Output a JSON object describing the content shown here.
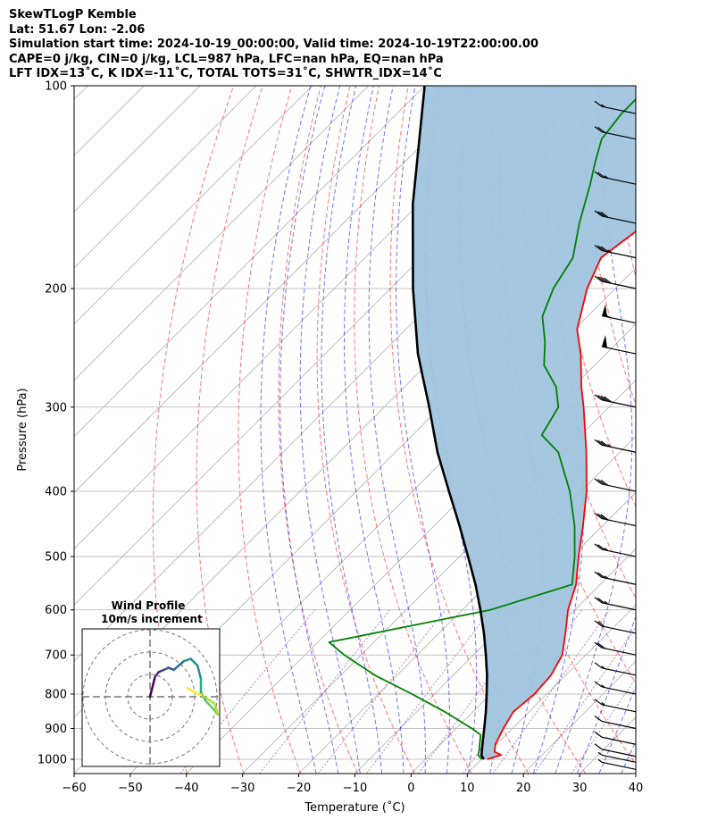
{
  "header": {
    "line1": "SkewTLogP Kemble",
    "line2": "Lat: 51.67   Lon: -2.06",
    "line3": "Simulation start time: 2024-10-19_00:00:00, Valid time: 2024-10-19T22:00:00.00",
    "line4": "CAPE=0 j/kg, CIN=0 j/kg, LCL=987 hPa, LFC=nan hPa, EQ=nan hPa",
    "line5": "LFT IDX=13˚C, K IDX=-11˚C, TOTAL TOTS=31˚C, SHWTR_IDX=14˚C"
  },
  "chart_data": {
    "type": "line",
    "subtype": "skew-t log-p",
    "xlabel": "Temperature (˚C)",
    "ylabel": "Pressure (hPa)",
    "xlim": [
      -60,
      40
    ],
    "ylim": [
      1050,
      100
    ],
    "x_ticks": [
      "−60",
      "−50",
      "−40",
      "−30",
      "−20",
      "−10",
      "0",
      "10",
      "20",
      "30",
      "40"
    ],
    "y_ticks": [
      "1000",
      "900",
      "800",
      "700",
      "600",
      "500",
      "400",
      "300",
      "200",
      "100"
    ],
    "y_tick_values": [
      1000,
      900,
      800,
      700,
      600,
      500,
      400,
      300,
      200,
      100
    ],
    "x_tick_values": [
      -60,
      -50,
      -40,
      -30,
      -20,
      -10,
      0,
      10,
      20,
      30,
      40
    ],
    "series": [
      {
        "name": "temperature",
        "color": "#ff0000",
        "points": [
          [
            1000,
            11.0
          ],
          [
            985,
            12.7
          ],
          [
            975,
            11.0
          ],
          [
            950,
            9.8
          ],
          [
            900,
            8.4
          ],
          [
            850,
            7.2
          ],
          [
            800,
            7.8
          ],
          [
            750,
            7.4
          ],
          [
            700,
            5.8
          ],
          [
            650,
            2.5
          ],
          [
            600,
            -1.2
          ],
          [
            550,
            -4.3
          ],
          [
            500,
            -8.8
          ],
          [
            450,
            -13.5
          ],
          [
            400,
            -19.0
          ],
          [
            350,
            -26.0
          ],
          [
            300,
            -34.5
          ],
          [
            280,
            -38.5
          ],
          [
            250,
            -44.5
          ],
          [
            230,
            -49.5
          ],
          [
            200,
            -55.0
          ],
          [
            180,
            -58.0
          ],
          [
            160,
            -56.0
          ],
          [
            140,
            -54.5
          ],
          [
            130,
            -52.0
          ],
          [
            120,
            -48.0
          ],
          [
            110,
            -47.0
          ],
          [
            100,
            -46.0
          ]
        ]
      },
      {
        "name": "dewpoint",
        "color": "#008000",
        "points": [
          [
            1000,
            10.0
          ],
          [
            985,
            8.6
          ],
          [
            970,
            8.0
          ],
          [
            950,
            7.0
          ],
          [
            920,
            5.5
          ],
          [
            900,
            2.8
          ],
          [
            850,
            -5.0
          ],
          [
            800,
            -14.0
          ],
          [
            750,
            -24.0
          ],
          [
            700,
            -33.0
          ],
          [
            670,
            -38.0
          ],
          [
            600,
            -15.0
          ],
          [
            550,
            -5.0
          ],
          [
            500,
            -9.5
          ],
          [
            450,
            -15.0
          ],
          [
            400,
            -22.0
          ],
          [
            350,
            -31.0
          ],
          [
            330,
            -37.0
          ],
          [
            300,
            -39.0
          ],
          [
            280,
            -43.0
          ],
          [
            260,
            -49.0
          ],
          [
            240,
            -53.0
          ],
          [
            220,
            -58.0
          ],
          [
            200,
            -61.0
          ],
          [
            180,
            -63.0
          ],
          [
            160,
            -68.0
          ],
          [
            140,
            -73.0
          ],
          [
            130,
            -76.0
          ],
          [
            120,
            -79.0
          ],
          [
            110,
            -80.0
          ],
          [
            100,
            -80.0
          ]
        ]
      },
      {
        "name": "parcel",
        "color": "#000000",
        "points": [
          [
            1000,
            10.4
          ],
          [
            987,
            9.3
          ],
          [
            950,
            7.5
          ],
          [
            900,
            5.0
          ],
          [
            850,
            2.3
          ],
          [
            800,
            -0.7
          ],
          [
            750,
            -4.0
          ],
          [
            700,
            -7.8
          ],
          [
            650,
            -12.0
          ],
          [
            600,
            -16.8
          ],
          [
            550,
            -22.2
          ],
          [
            500,
            -28.5
          ],
          [
            450,
            -35.5
          ],
          [
            400,
            -43.5
          ],
          [
            350,
            -52.5
          ],
          [
            300,
            -62.0
          ],
          [
            250,
            -73.5
          ],
          [
            200,
            -86.0
          ],
          [
            150,
            -101.0
          ],
          [
            100,
            -120.0
          ]
        ]
      }
    ],
    "cape_shading_color": "#a0c4de",
    "dry_adiabats_color": "#ff0000",
    "moist_adiabats_color": "#0000ff",
    "mixing_lines_color": "#800080",
    "wind_barbs": [
      [
        1035,
        5
      ],
      [
        1010,
        8
      ],
      [
        990,
        10
      ],
      [
        950,
        12
      ],
      [
        900,
        12
      ],
      [
        850,
        15
      ],
      [
        800,
        18
      ],
      [
        750,
        18
      ],
      [
        700,
        20
      ],
      [
        650,
        22
      ],
      [
        600,
        25
      ],
      [
        550,
        25
      ],
      [
        500,
        28
      ],
      [
        450,
        30
      ],
      [
        400,
        30
      ],
      [
        350,
        35
      ],
      [
        300,
        40
      ],
      [
        250,
        50
      ],
      [
        225,
        55
      ],
      [
        200,
        40
      ],
      [
        180,
        35
      ],
      [
        160,
        30
      ],
      [
        140,
        25
      ],
      [
        120,
        20
      ],
      [
        110,
        15
      ]
    ],
    "inset": {
      "title": "Wind Profile",
      "subtitle": "10m/s increment",
      "hodograph": [
        [
          0,
          0
        ],
        [
          1,
          3
        ],
        [
          2,
          6
        ],
        [
          3,
          9
        ],
        [
          5,
          11
        ],
        [
          8,
          12
        ],
        [
          11,
          13
        ],
        [
          14,
          12
        ],
        [
          17,
          14
        ],
        [
          20,
          16
        ],
        [
          24,
          17
        ],
        [
          28,
          14
        ],
        [
          30,
          8
        ],
        [
          30,
          2
        ],
        [
          33,
          -2
        ],
        [
          38,
          -6
        ],
        [
          40,
          -8
        ],
        [
          38,
          -3
        ],
        [
          30,
          1
        ],
        [
          26,
          2
        ],
        [
          22,
          4
        ]
      ]
    }
  }
}
